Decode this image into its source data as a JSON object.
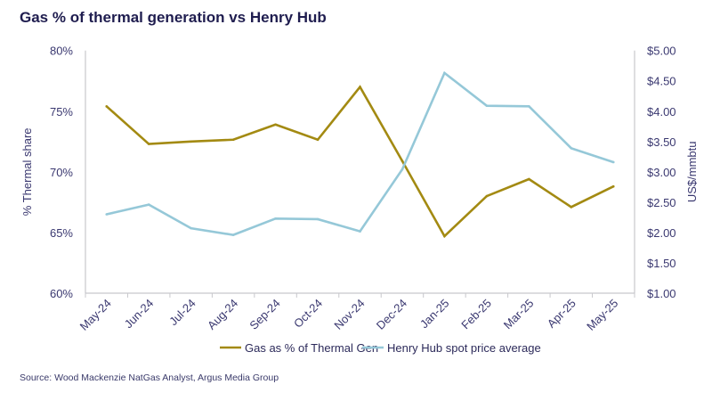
{
  "chart_data": {
    "type": "line",
    "title": "Gas % of thermal generation vs Henry Hub",
    "source": "Source: Wood Mackenzie NatGas Analyst, Argus Media Group",
    "categories": [
      "May-24",
      "Jun-24",
      "Jul-24",
      "Aug-24",
      "Sep-24",
      "Oct-24",
      "Nov-24",
      "Dec-24",
      "Jan-25",
      "Feb-25",
      "Mar-25",
      "Apr-25",
      "May-25"
    ],
    "y_left": {
      "label": "% Thermal share",
      "ylim": [
        60,
        80
      ],
      "ticks": [
        60,
        65,
        70,
        75,
        80
      ],
      "tick_labels": [
        "60%",
        "65%",
        "70%",
        "75%",
        "80%"
      ]
    },
    "y_right": {
      "label": "US$/mmbtu",
      "ylim": [
        1,
        5
      ],
      "ticks": [
        1,
        1.5,
        2,
        2.5,
        3,
        3.5,
        4,
        4.5,
        5
      ],
      "tick_labels": [
        "$1.00",
        "$1.50",
        "$2.00",
        "$2.50",
        "$3.00",
        "$3.50",
        "$4.00",
        "$4.50",
        "$5.00"
      ]
    },
    "series": [
      {
        "name": "Gas as % of Thermal Gen",
        "axis": "left",
        "color": "#a38a12",
        "values": [
          75.4,
          72.3,
          72.5,
          72.65,
          73.9,
          72.65,
          77.0,
          70.9,
          64.7,
          68.0,
          69.4,
          67.1,
          68.8
        ]
      },
      {
        "name": "Henry Hub spot price average",
        "axis": "right",
        "color": "#95c8d8",
        "values": [
          2.3,
          2.46,
          2.07,
          1.96,
          2.23,
          2.22,
          2.02,
          3.04,
          4.63,
          4.09,
          4.08,
          3.39,
          3.16
        ]
      }
    ],
    "grid": false,
    "legend": "bottom"
  }
}
